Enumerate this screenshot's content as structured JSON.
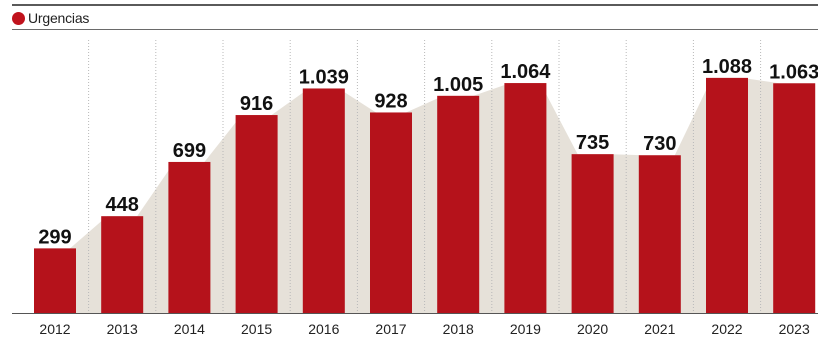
{
  "legend": {
    "label": "Urgencias",
    "color": "#c0121c"
  },
  "colors": {
    "bar": "#b5121b",
    "area": "#e6e1d9",
    "grid": "#b8b8b8",
    "baseline": "#555555"
  },
  "chart_data": {
    "type": "bar",
    "categories": [
      "2012",
      "2013",
      "2014",
      "2015",
      "2016",
      "2017",
      "2018",
      "2019",
      "2020",
      "2021",
      "2022",
      "2023"
    ],
    "series": [
      {
        "name": "Urgencias",
        "values": [
          299,
          448,
          699,
          916,
          1039,
          928,
          1005,
          1064,
          735,
          730,
          1088,
          1063
        ]
      }
    ],
    "data_labels": [
      "299",
      "448",
      "699",
      "916",
      "1.039",
      "928",
      "1.005",
      "1.064",
      "735",
      "730",
      "1.088",
      "1.063"
    ],
    "ylim": [
      0,
      1200
    ],
    "grid": "vertical dotted lines between categories",
    "legend_position": "top-left",
    "background": "shaded area connecting bar tops"
  }
}
